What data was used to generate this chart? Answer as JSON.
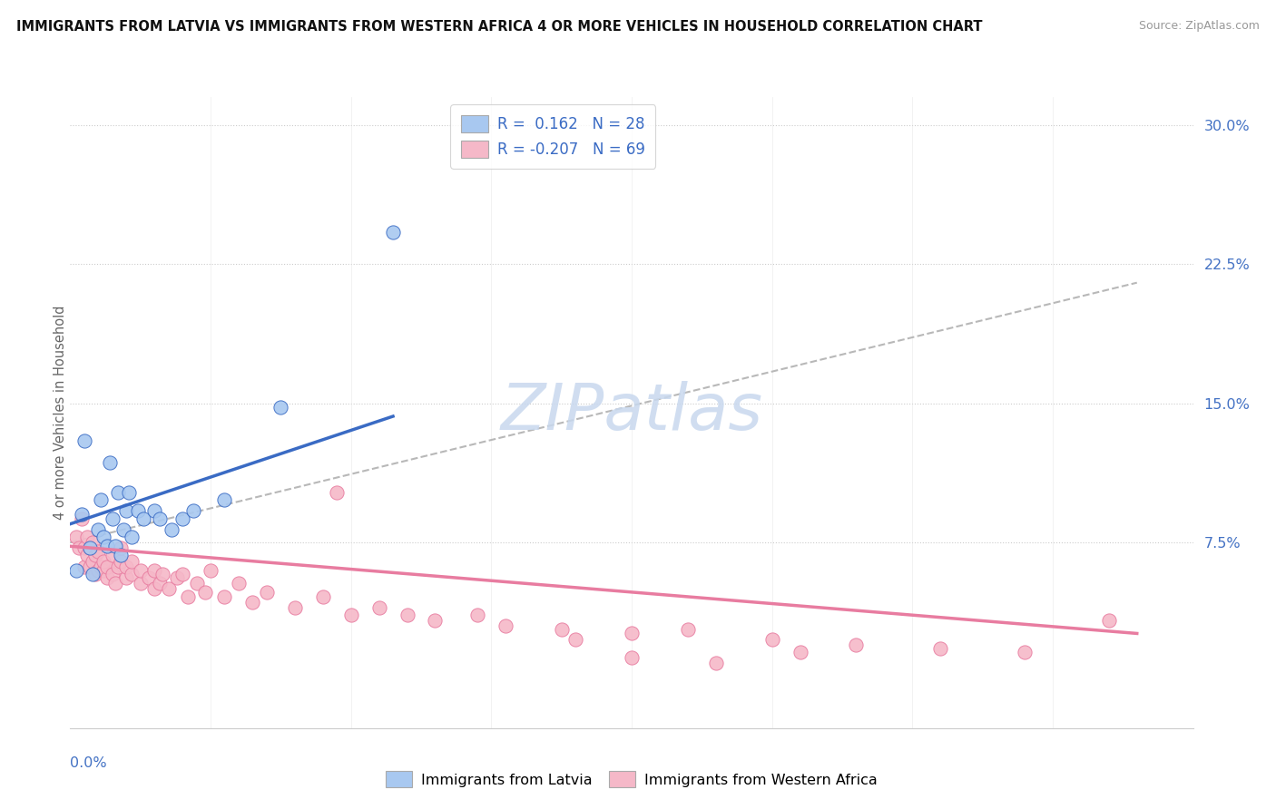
{
  "title": "IMMIGRANTS FROM LATVIA VS IMMIGRANTS FROM WESTERN AFRICA 4 OR MORE VEHICLES IN HOUSEHOLD CORRELATION CHART",
  "source": "Source: ZipAtlas.com",
  "ylabel": "4 or more Vehicles in Household",
  "color_latvia": "#a8c8f0",
  "color_western_africa": "#f5b8c8",
  "color_latvia_line": "#3a6bc4",
  "color_western_africa_line": "#e87ca0",
  "color_trend_dashed": "#b8b8b8",
  "watermark_text": "ZIPatlas",
  "watermark_color": "#c8d8ee",
  "xlim": [
    0.0,
    0.4
  ],
  "ylim": [
    -0.025,
    0.315
  ],
  "ytick_vals": [
    0.075,
    0.15,
    0.225,
    0.3
  ],
  "ytick_labels": [
    "7.5%",
    "15.0%",
    "22.5%",
    "30.0%"
  ],
  "latvia_r": "R =  0.162",
  "latvia_n": "N = 28",
  "wa_r": "R = -0.207",
  "wa_n": "N = 69",
  "legend_label_latvia": "Immigrants from Latvia",
  "legend_label_wa": "Immigrants from Western Africa",
  "latvia_scatter_x": [
    0.002,
    0.004,
    0.005,
    0.007,
    0.008,
    0.01,
    0.011,
    0.012,
    0.013,
    0.014,
    0.015,
    0.016,
    0.017,
    0.018,
    0.019,
    0.02,
    0.021,
    0.022,
    0.024,
    0.026,
    0.03,
    0.032,
    0.036,
    0.04,
    0.044,
    0.055,
    0.075,
    0.115
  ],
  "latvia_scatter_y": [
    0.06,
    0.09,
    0.13,
    0.072,
    0.058,
    0.082,
    0.098,
    0.078,
    0.073,
    0.118,
    0.088,
    0.073,
    0.102,
    0.068,
    0.082,
    0.092,
    0.102,
    0.078,
    0.092,
    0.088,
    0.092,
    0.088,
    0.082,
    0.088,
    0.092,
    0.098,
    0.148,
    0.242
  ],
  "wa_scatter_x": [
    0.002,
    0.003,
    0.004,
    0.005,
    0.005,
    0.006,
    0.006,
    0.007,
    0.007,
    0.008,
    0.008,
    0.009,
    0.009,
    0.01,
    0.01,
    0.011,
    0.012,
    0.012,
    0.013,
    0.013,
    0.015,
    0.015,
    0.016,
    0.017,
    0.018,
    0.018,
    0.02,
    0.02,
    0.022,
    0.022,
    0.025,
    0.025,
    0.028,
    0.03,
    0.03,
    0.032,
    0.033,
    0.035,
    0.038,
    0.04,
    0.042,
    0.045,
    0.048,
    0.05,
    0.055,
    0.06,
    0.065,
    0.07,
    0.08,
    0.09,
    0.095,
    0.1,
    0.11,
    0.12,
    0.13,
    0.145,
    0.155,
    0.175,
    0.2,
    0.22,
    0.25,
    0.28,
    0.31,
    0.34,
    0.18,
    0.2,
    0.23,
    0.26,
    0.37
  ],
  "wa_scatter_y": [
    0.078,
    0.072,
    0.088,
    0.062,
    0.072,
    0.068,
    0.078,
    0.062,
    0.072,
    0.065,
    0.075,
    0.058,
    0.068,
    0.06,
    0.07,
    0.062,
    0.06,
    0.065,
    0.056,
    0.062,
    0.058,
    0.068,
    0.053,
    0.062,
    0.065,
    0.072,
    0.056,
    0.062,
    0.058,
    0.065,
    0.053,
    0.06,
    0.056,
    0.05,
    0.06,
    0.053,
    0.058,
    0.05,
    0.056,
    0.058,
    0.046,
    0.053,
    0.048,
    0.06,
    0.046,
    0.053,
    0.043,
    0.048,
    0.04,
    0.046,
    0.102,
    0.036,
    0.04,
    0.036,
    0.033,
    0.036,
    0.03,
    0.028,
    0.026,
    0.028,
    0.023,
    0.02,
    0.018,
    0.016,
    0.023,
    0.013,
    0.01,
    0.016,
    0.033
  ],
  "latvia_line_x": [
    0.0,
    0.115
  ],
  "latvia_line_y": [
    0.085,
    0.143
  ],
  "wa_line_x": [
    0.0,
    0.38
  ],
  "wa_line_y": [
    0.073,
    0.026
  ],
  "dashed_line_x": [
    0.0,
    0.38
  ],
  "dashed_line_y": [
    0.075,
    0.215
  ]
}
